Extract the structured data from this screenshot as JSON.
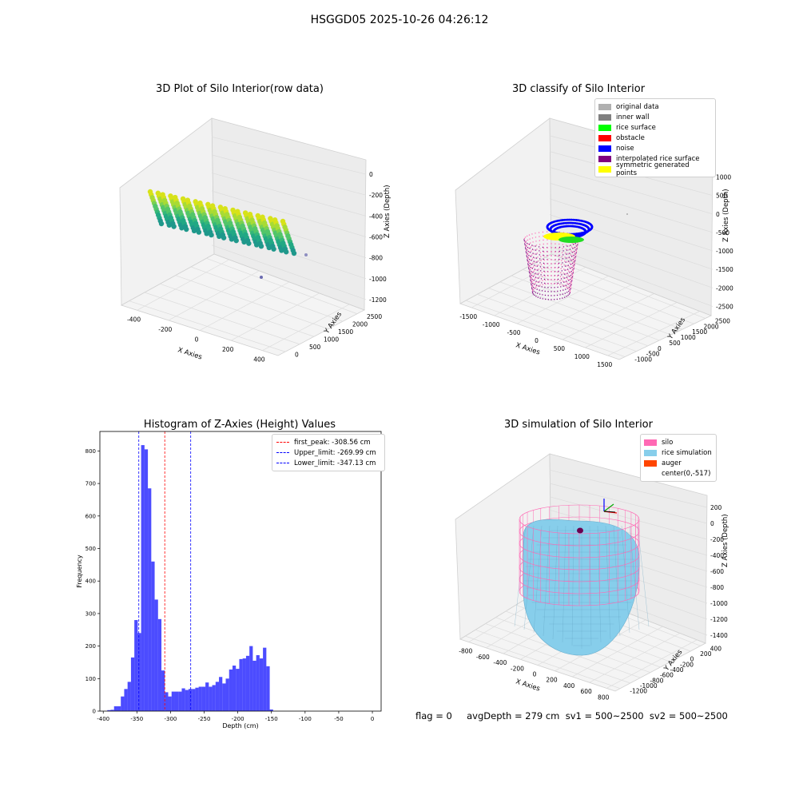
{
  "suptitle": "HSGGD05 2025-10-26 04:26:12",
  "status_line": "flag = 0     avgDepth = 279 cm  sv1 = 500~2500  sv2 = 500~2500",
  "panels": {
    "raw": {
      "title": "3D Plot of Silo Interior(row data)",
      "xlabel": "X Axies",
      "ylabel": "Y Axies",
      "zlabel": "Z Axies (Depth)",
      "xticks": [
        "-400",
        "-200",
        "0",
        "200",
        "400"
      ],
      "yticks": [
        "0",
        "500",
        "1000",
        "1500",
        "2000",
        "2500"
      ],
      "zticks": [
        "0",
        "-200",
        "-400",
        "-600",
        "-800",
        "-1000",
        "-1200"
      ]
    },
    "classify": {
      "title": "3D classify of Silo Interior",
      "xlabel": "X Axies",
      "ylabel": "Y Axies",
      "zlabel": "Z Axies (Depth)",
      "xticks": [
        "-1500",
        "-1000",
        "-500",
        "0",
        "500",
        "1000",
        "1500"
      ],
      "yticks": [
        "-1000",
        "-500",
        "0",
        "500",
        "1000",
        "1500",
        "2000",
        "2500"
      ],
      "zticks": [
        "1000",
        "500",
        "0",
        "-500",
        "-1000",
        "-1500",
        "-2000",
        "-2500"
      ],
      "legend": [
        {
          "label": "original data",
          "color": "#b0b0b0"
        },
        {
          "label": "inner wall",
          "color": "#808080"
        },
        {
          "label": "rice surface",
          "color": "#00ff00"
        },
        {
          "label": "obstacle",
          "color": "#ff0000"
        },
        {
          "label": "noise",
          "color": "#0000ff"
        },
        {
          "label": "interpolated rice surface",
          "color": "#800080"
        },
        {
          "label": "symmetric generated points",
          "color": "#ffff00"
        }
      ]
    },
    "simulation": {
      "title": "3D simulation of Silo Interior",
      "xlabel": "X Axies",
      "ylabel": "Y Axies",
      "zlabel": "Z Axies (Depth)",
      "xticks": [
        "-800",
        "-600",
        "-400",
        "-200",
        "0",
        "200",
        "400",
        "600",
        "800"
      ],
      "yticks": [
        "-1200",
        "-1000",
        "-800",
        "-600",
        "-400",
        "-200",
        "0",
        "200",
        "400"
      ],
      "zticks": [
        "200",
        "0",
        "-200",
        "-400",
        "-600",
        "-800",
        "-1000",
        "-1200",
        "-1400"
      ],
      "legend": [
        {
          "label": "silo",
          "color": "#ff69b4"
        },
        {
          "label": "rice simulation",
          "color": "#87ceeb"
        },
        {
          "label": "auger",
          "color": "#ff4500"
        },
        {
          "label": "center(0,-517)",
          "color": ""
        }
      ]
    }
  },
  "chart_data": {
    "type": "bar",
    "title": "Histogram of Z-Axies (Height) Values",
    "xlabel": "Depth (cm)",
    "ylabel": "Frequency",
    "xlim": [
      -405,
      13
    ],
    "ylim": [
      0,
      860
    ],
    "xticks": [
      -400,
      -350,
      -300,
      -250,
      -200,
      -150,
      -100,
      -50,
      0
    ],
    "yticks": [
      0,
      100,
      200,
      300,
      400,
      500,
      600,
      700,
      800
    ],
    "bin_start": -394,
    "bin_width": 5.03,
    "values": [
      3,
      4,
      15,
      15,
      45,
      68,
      90,
      165,
      280,
      240,
      818,
      805,
      685,
      460,
      343,
      283,
      125,
      58,
      45,
      60,
      60,
      60,
      70,
      65,
      68,
      68,
      72,
      75,
      75,
      88,
      75,
      80,
      90,
      105,
      85,
      100,
      128,
      140,
      130,
      160,
      162,
      170,
      200,
      155,
      172,
      162,
      195,
      138,
      5
    ],
    "bar_color": "#0000ff",
    "vlines": [
      {
        "x": -308.56,
        "label": "first_peak: -308.56 cm",
        "color": "#ff0000"
      },
      {
        "x": -269.99,
        "label": "Upper_limit: -269.99 cm",
        "color": "#0000ff"
      },
      {
        "x": -347.13,
        "label": "Lower_limit: -347.13 cm",
        "color": "#0000ff"
      }
    ],
    "legend_position": "upper right",
    "grid": false
  }
}
